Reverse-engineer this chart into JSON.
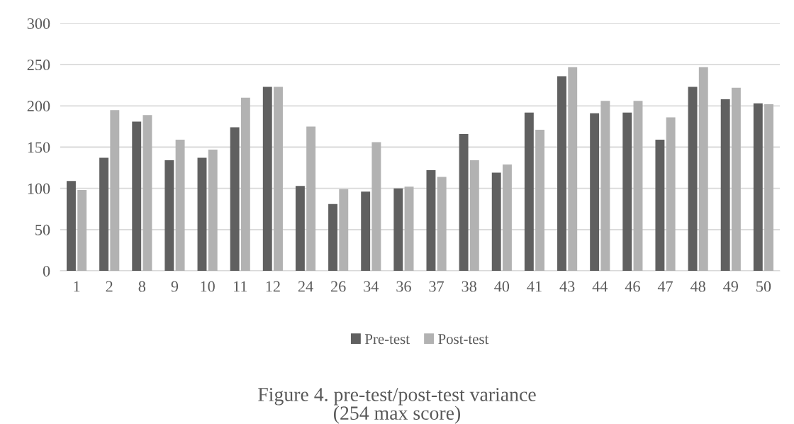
{
  "chart_data": {
    "type": "bar",
    "title": "Figure 4. pre-test/post-test variance\n(254 max score)",
    "categories": [
      "1",
      "2",
      "8",
      "9",
      "10",
      "11",
      "12",
      "24",
      "26",
      "34",
      "36",
      "37",
      "38",
      "40",
      "41",
      "43",
      "44",
      "46",
      "47",
      "48",
      "49",
      "50"
    ],
    "series": [
      {
        "name": "Pre-test",
        "color": "#606060",
        "values": [
          109,
          137,
          181,
          134,
          137,
          174,
          223,
          103,
          81,
          96,
          100,
          122,
          166,
          119,
          192,
          236,
          191,
          192,
          159,
          223,
          208,
          203
        ]
      },
      {
        "name": "Post-test",
        "color": "#b2b2b2",
        "values": [
          98,
          195,
          189,
          159,
          147,
          210,
          223,
          175,
          99,
          156,
          102,
          114,
          134,
          129,
          171,
          247,
          206,
          206,
          186,
          247,
          222,
          202
        ]
      }
    ],
    "ylim": [
      0,
      300
    ],
    "yticks": [
      0,
      50,
      100,
      150,
      200,
      250,
      300
    ],
    "grid": "y",
    "legend": "bottom"
  }
}
